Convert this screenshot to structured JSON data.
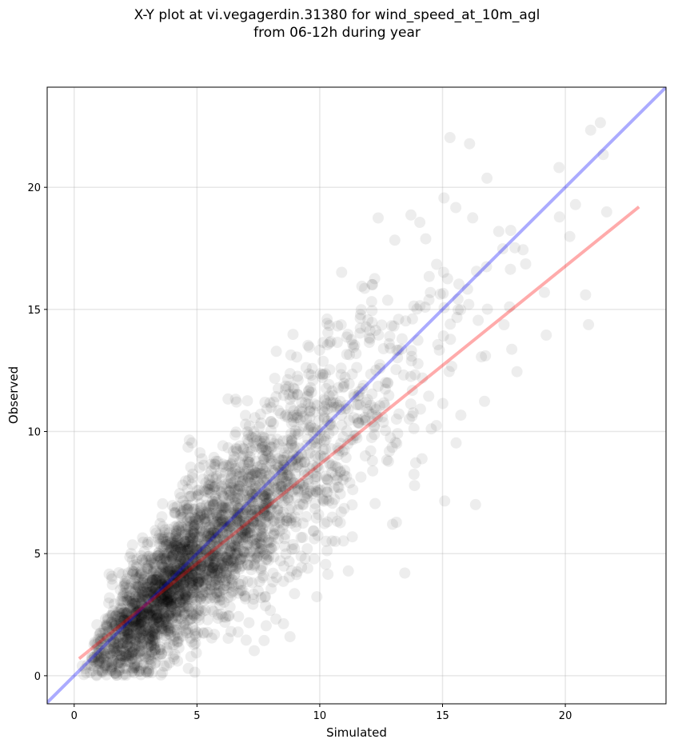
{
  "title_line1": "X-Y plot at vi.vegagerdin.31380 for wind_speed_at_10m_agl",
  "title_line2": "from 06-12h during year",
  "chart_data": {
    "type": "scatter",
    "title": "X-Y plot at vi.vegagerdin.31380 for wind_speed_at_10m_agl from 06-12h during year",
    "xlabel": "Simulated",
    "ylabel": "Observed",
    "xlim": [
      -1.1,
      24.1
    ],
    "ylim": [
      -1.15,
      24.1
    ],
    "xticks": [
      0,
      5,
      10,
      15,
      20
    ],
    "yticks": [
      0,
      5,
      10,
      15,
      20
    ],
    "grid": true,
    "points_color": "#000000",
    "points_note": "several thousand semi-transparent black points clustered around the 1:1 line",
    "lines": [
      {
        "name": "1:1",
        "color": "#0000ff",
        "x": [
          -1.1,
          24.1
        ],
        "y": [
          -1.1,
          24.1
        ]
      },
      {
        "name": "fit",
        "color": "#ff0000",
        "x": [
          0.2,
          23.0
        ],
        "y": [
          0.7,
          19.2
        ]
      }
    ]
  }
}
